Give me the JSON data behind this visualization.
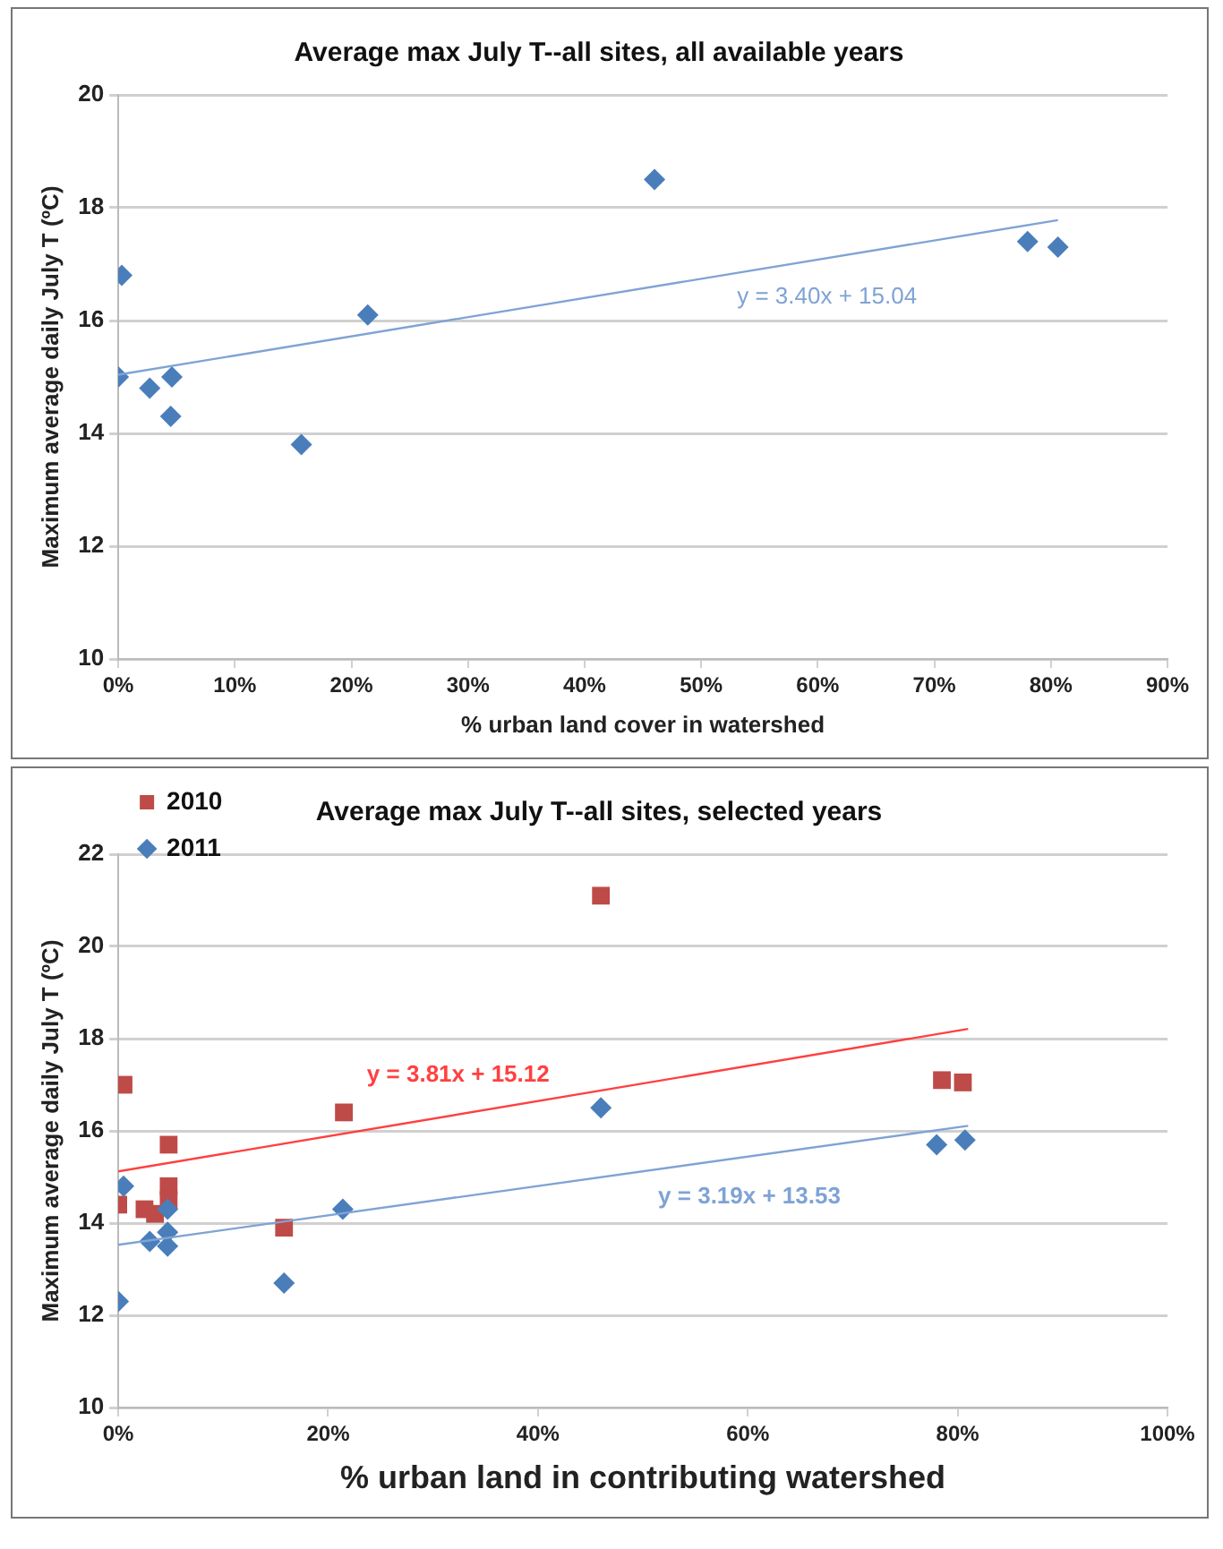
{
  "chart_data": [
    {
      "type": "scatter",
      "title": "Average max July T--all sites, all available years",
      "xlabel": "% urban land cover in watershed",
      "ylabel": "Maximum average daily July T (ºC)",
      "xlim": [
        0,
        90
      ],
      "xticks": [
        {
          "value": 0,
          "label": "0%"
        },
        {
          "value": 10,
          "label": "10%"
        },
        {
          "value": 20,
          "label": "20%"
        },
        {
          "value": 30,
          "label": "30%"
        },
        {
          "value": 40,
          "label": "40%"
        },
        {
          "value": 50,
          "label": "50%"
        },
        {
          "value": 60,
          "label": "60%"
        },
        {
          "value": 70,
          "label": "70%"
        },
        {
          "value": 80,
          "label": "80%"
        },
        {
          "value": 90,
          "label": "90%"
        }
      ],
      "ylim": [
        10,
        20
      ],
      "yticks": [
        10,
        12,
        14,
        16,
        18,
        20
      ],
      "grid": "y",
      "legend": false,
      "series": [
        {
          "color": "#4a7ebb",
          "marker": "diamond",
          "x": [
            0,
            0.3,
            2.7,
            4.6,
            4.5,
            15.7,
            21.4,
            46,
            78,
            80.6
          ],
          "values": [
            15.0,
            16.8,
            14.8,
            15.0,
            14.3,
            13.8,
            16.1,
            18.5,
            17.4,
            17.3
          ]
        },
        {
          "type": "line",
          "color": "#7fa3d4",
          "marker": "none",
          "x": [
            0,
            80.6
          ],
          "values": [
            15.04,
            17.78
          ]
        }
      ],
      "annotations": [
        "y = 3.40x + 15.04"
      ]
    },
    {
      "type": "scatter",
      "title": "Average max July T--all sites, selected years",
      "xlabel": "% urban land in contributing watershed",
      "ylabel": "Maximum average daily July T (ºC)",
      "xlim": [
        0,
        100
      ],
      "xticks": [
        {
          "value": 0,
          "label": "0%"
        },
        {
          "value": 20,
          "label": "20%"
        },
        {
          "value": 40,
          "label": "40%"
        },
        {
          "value": 60,
          "label": "60%"
        },
        {
          "value": 80,
          "label": "80%"
        },
        {
          "value": 100,
          "label": "100%"
        }
      ],
      "ylim": [
        10,
        22
      ],
      "yticks": [
        10,
        12,
        14,
        16,
        18,
        20,
        22
      ],
      "grid": "y",
      "legend": "top left",
      "series": [
        {
          "name": "2010",
          "color": "#be4b48",
          "marker": "square",
          "x": [
            0,
            0.5,
            2.5,
            3.5,
            4.8,
            4.8,
            4.8,
            15.8,
            21.5,
            46,
            78.5,
            80.5
          ],
          "values": [
            14.4,
            17.0,
            14.3,
            14.2,
            15.7,
            14.8,
            14.5,
            13.9,
            16.4,
            21.1,
            17.1,
            17.05
          ]
        },
        {
          "name": "2011",
          "color": "#4a7ebb",
          "marker": "diamond",
          "x": [
            0,
            0.5,
            3,
            4.7,
            4.7,
            4.7,
            15.8,
            21.4,
            46,
            78,
            80.7
          ],
          "values": [
            12.3,
            14.8,
            13.6,
            14.3,
            13.8,
            13.5,
            12.7,
            14.3,
            16.5,
            15.7,
            15.8
          ]
        },
        {
          "type": "line",
          "color": "#ff4040",
          "marker": "none",
          "x": [
            0,
            81
          ],
          "values": [
            15.12,
            18.21
          ]
        },
        {
          "type": "line",
          "color": "#7fa3d4",
          "marker": "none",
          "x": [
            0,
            81
          ],
          "values": [
            13.53,
            16.11
          ]
        }
      ],
      "annotations": [
        "y = 3.81x + 15.12",
        "y = 3.19x + 13.53"
      ]
    }
  ]
}
